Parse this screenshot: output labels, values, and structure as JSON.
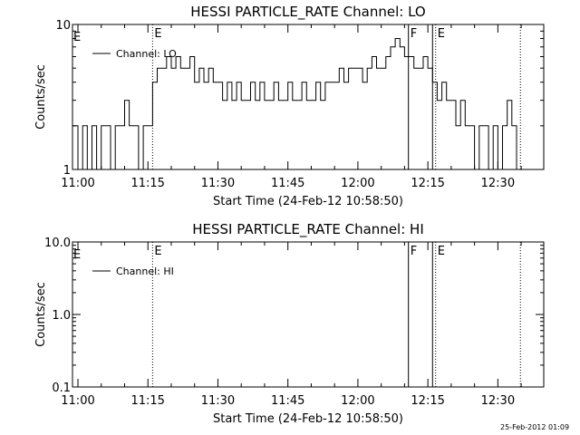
{
  "footer_stamp": "25-Feb-2012 01:09",
  "chart_data": [
    {
      "type": "line",
      "title": "HESSI PARTICLE_RATE Channel: LO",
      "xlabel": "Start Time (24-Feb-12 10:58:50)",
      "ylabel": "Counts/sec",
      "y_scale": "log",
      "xlim": [
        "10:58:50",
        "12:39:50"
      ],
      "ylim": [
        1,
        10
      ],
      "x_tick_labels": [
        "11:00",
        "11:15",
        "11:30",
        "11:45",
        "12:00",
        "12:15",
        "12:30"
      ],
      "y_tick_labels": [
        "1",
        "10"
      ],
      "legend": [
        "Channel: LO"
      ],
      "legend_position": "top-left",
      "grid": false,
      "markers": [
        {
          "time": "11:16:00",
          "label": "E",
          "style": "dotted"
        },
        {
          "time": "12:10:50",
          "label": "F",
          "style": "solid"
        },
        {
          "time": "12:16:00",
          "label": "",
          "style": "solid"
        },
        {
          "time": "12:16:40",
          "label": "E",
          "style": "dotted"
        },
        {
          "time": "12:34:50",
          "label": "",
          "style": "dotted"
        }
      ],
      "series": [
        {
          "name": "Channel: LO",
          "x": [
            "10:58:50",
            "11:00:00",
            "11:01:00",
            "11:02:00",
            "11:03:00",
            "11:04:00",
            "11:05:00",
            "11:06:00",
            "11:07:00",
            "11:08:00",
            "11:09:00",
            "11:10:00",
            "11:11:00",
            "11:12:00",
            "11:13:00",
            "11:14:00",
            "11:15:00",
            "11:16:00",
            "11:17:00",
            "11:18:00",
            "11:19:00",
            "11:20:00",
            "11:21:00",
            "11:22:00",
            "11:23:00",
            "11:24:00",
            "11:25:00",
            "11:26:00",
            "11:27:00",
            "11:28:00",
            "11:29:00",
            "11:30:00",
            "11:31:00",
            "11:32:00",
            "11:33:00",
            "11:34:00",
            "11:35:00",
            "11:36:00",
            "11:37:00",
            "11:38:00",
            "11:39:00",
            "11:40:00",
            "11:41:00",
            "11:42:00",
            "11:43:00",
            "11:44:00",
            "11:45:00",
            "11:46:00",
            "11:47:00",
            "11:48:00",
            "11:49:00",
            "11:50:00",
            "11:51:00",
            "11:52:00",
            "11:53:00",
            "11:54:00",
            "11:55:00",
            "11:56:00",
            "11:57:00",
            "11:58:00",
            "11:59:00",
            "12:00:00",
            "12:01:00",
            "12:02:00",
            "12:03:00",
            "12:04:00",
            "12:05:00",
            "12:06:00",
            "12:07:00",
            "12:08:00",
            "12:09:00",
            "12:10:00",
            "12:11:00",
            "12:12:00",
            "12:13:00",
            "12:14:00",
            "12:15:00",
            "12:16:00",
            "12:17:00",
            "12:18:00",
            "12:19:00",
            "12:20:00",
            "12:21:00",
            "12:22:00",
            "12:23:00",
            "12:24:00",
            "12:25:00",
            "12:26:00",
            "12:27:00",
            "12:28:00",
            "12:29:00",
            "12:30:00",
            "12:31:00",
            "12:32:00",
            "12:33:00",
            "12:34:00",
            "12:35:00"
          ],
          "y": [
            2,
            1,
            2,
            1,
            2,
            1,
            2,
            2,
            1,
            2,
            2,
            3,
            2,
            2,
            1,
            2,
            2,
            4,
            5,
            5,
            6,
            5,
            6,
            5,
            5,
            6,
            4,
            5,
            4,
            5,
            4,
            4,
            3,
            4,
            3,
            4,
            3,
            3,
            4,
            3,
            4,
            3,
            3,
            4,
            3,
            3,
            4,
            3,
            3,
            4,
            3,
            3,
            4,
            3,
            4,
            4,
            4,
            5,
            4,
            5,
            5,
            5,
            4,
            5,
            6,
            5,
            5,
            6,
            7,
            8,
            7,
            6,
            6,
            5,
            5,
            6,
            5,
            4,
            3,
            4,
            3,
            3,
            2,
            3,
            2,
            2,
            1,
            2,
            2,
            1,
            2,
            1,
            2,
            3,
            2,
            1,
            1
          ]
        }
      ]
    },
    {
      "type": "line",
      "title": "HESSI PARTICLE_RATE Channel: HI",
      "xlabel": "Start Time (24-Feb-12 10:58:50)",
      "ylabel": "Counts/sec",
      "y_scale": "log",
      "xlim": [
        "10:58:50",
        "12:39:50"
      ],
      "ylim": [
        0.1,
        10.0
      ],
      "x_tick_labels": [
        "11:00",
        "11:15",
        "11:30",
        "11:45",
        "12:00",
        "12:15",
        "12:30"
      ],
      "y_tick_labels": [
        "0.1",
        "1.0",
        "10.0"
      ],
      "legend": [
        "Channel: HI"
      ],
      "legend_position": "top-left",
      "grid": false,
      "markers": [
        {
          "time": "11:16:00",
          "label": "E",
          "style": "dotted"
        },
        {
          "time": "12:10:50",
          "label": "F",
          "style": "solid"
        },
        {
          "time": "12:16:00",
          "label": "",
          "style": "solid"
        },
        {
          "time": "12:16:40",
          "label": "E",
          "style": "dotted"
        },
        {
          "time": "12:34:50",
          "label": "",
          "style": "dotted"
        }
      ],
      "series": [
        {
          "name": "Channel: HI",
          "x": [],
          "y": []
        }
      ]
    }
  ]
}
